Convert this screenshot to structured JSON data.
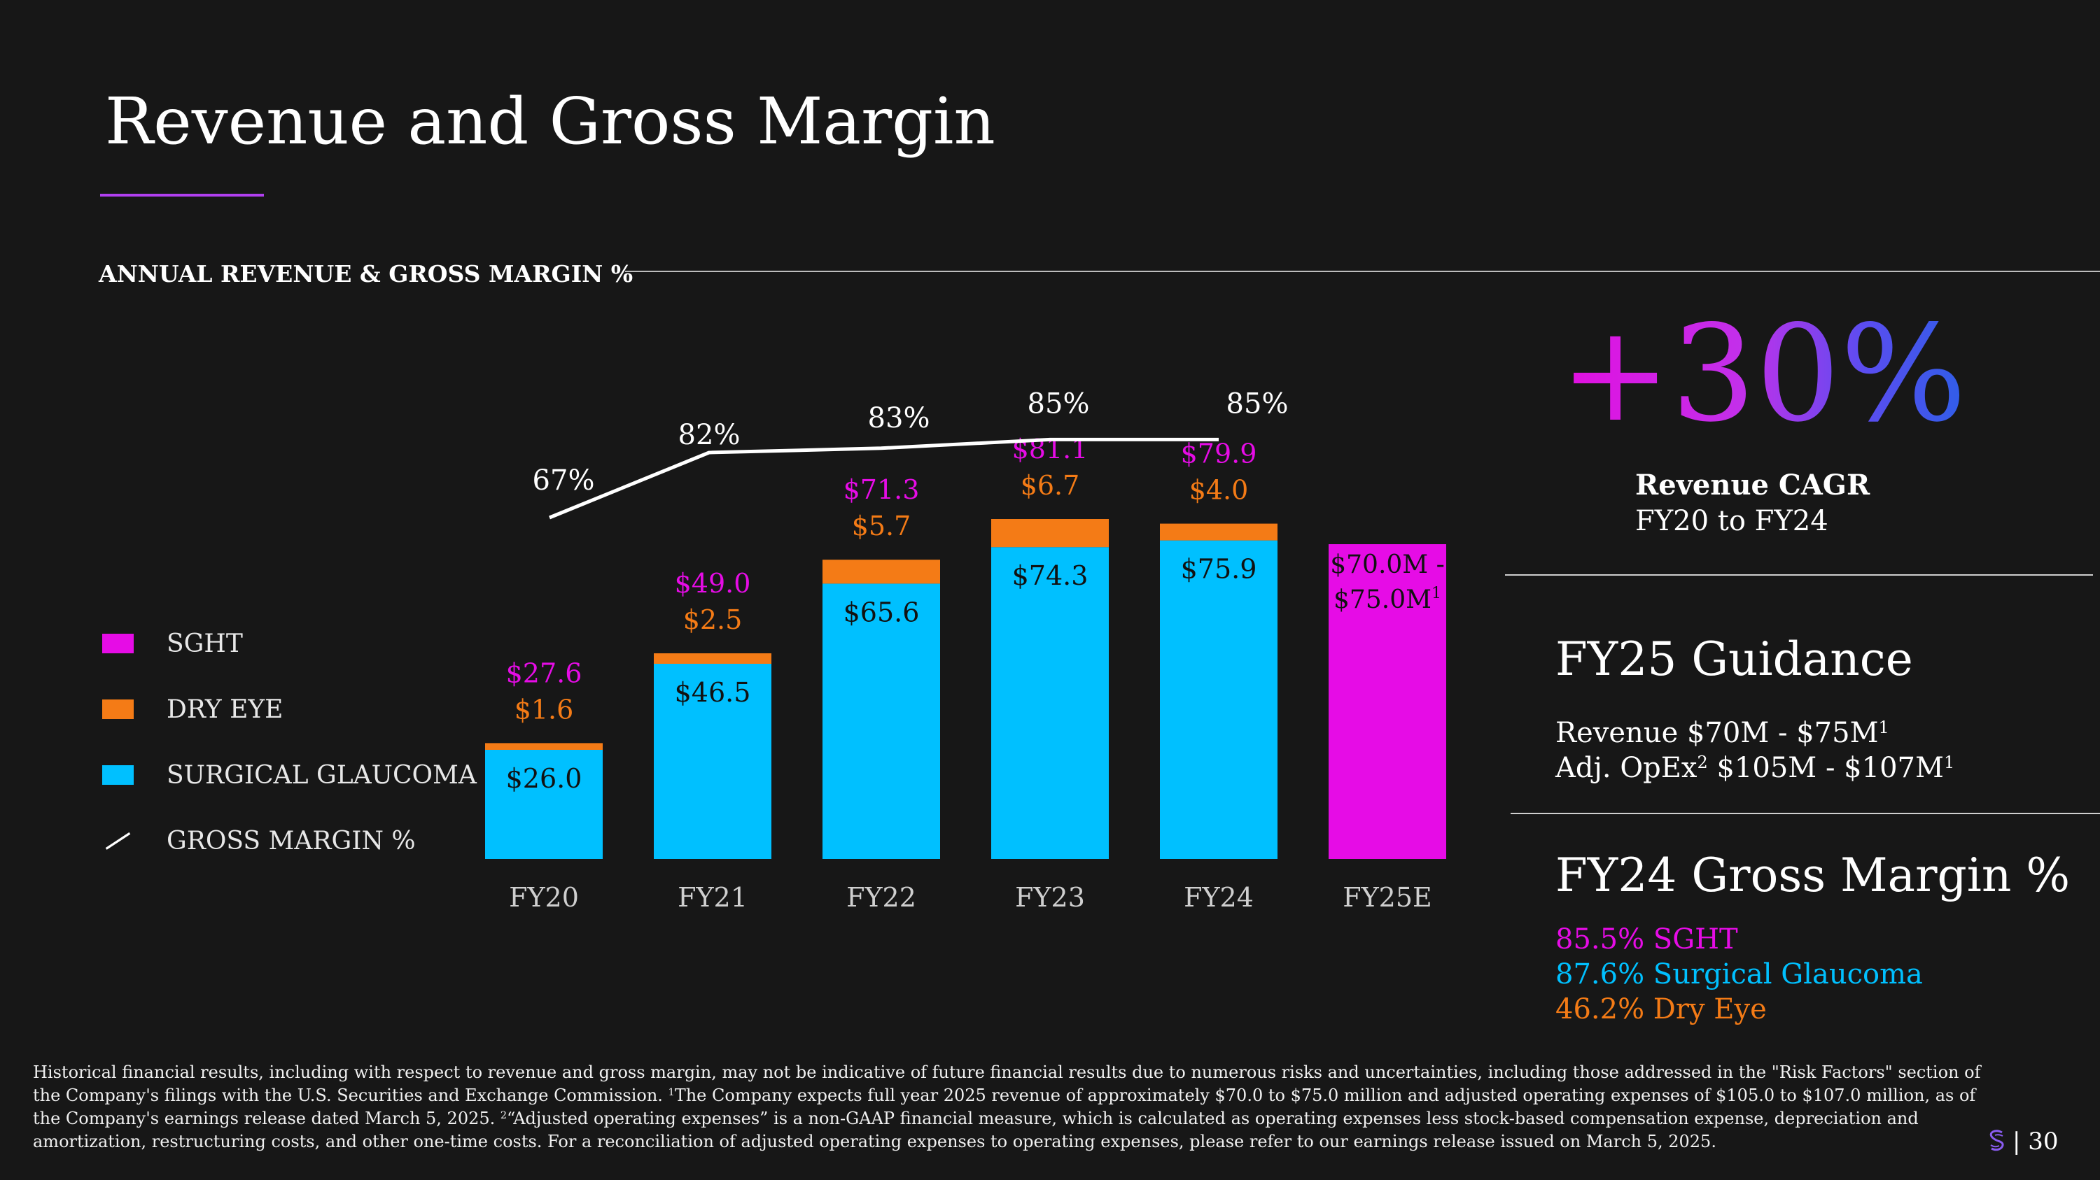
{
  "page_title": "Revenue and Gross Margin",
  "section_label": "ANNUAL REVENUE & GROSS MARGIN %",
  "colors": {
    "sght": "#e60ce6",
    "dry_eye": "#f47b16",
    "surgical_glaucoma": "#00c0ff",
    "gross_margin": "#ffffff",
    "accent": "#b13ff0"
  },
  "legend": [
    {
      "label": "SGHT",
      "color": "#e60ce6",
      "icon": "square"
    },
    {
      "label": "DRY EYE",
      "color": "#f47b16",
      "icon": "square"
    },
    {
      "label": "SURGICAL GLAUCOMA",
      "color": "#00c0ff",
      "icon": "square"
    },
    {
      "label": "GROSS MARGIN %",
      "color": "#ffffff",
      "icon": "line"
    }
  ],
  "chart_data": {
    "type": "bar",
    "title": "ANNUAL REVENUE & GROSS MARGIN %",
    "categories": [
      "FY20",
      "FY21",
      "FY22",
      "FY23",
      "FY24",
      "FY25E"
    ],
    "units": "$M",
    "series": [
      {
        "name": "SURGICAL GLAUCOMA",
        "values": [
          26.0,
          46.5,
          65.6,
          74.3,
          75.9,
          null
        ],
        "labels": [
          "$26.0",
          "$46.5",
          "$65.6",
          "$74.3",
          "$75.9",
          ""
        ]
      },
      {
        "name": "DRY EYE",
        "values": [
          1.6,
          2.5,
          5.7,
          6.7,
          4.0,
          null
        ],
        "labels": [
          "$1.6",
          "$2.5",
          "$5.7",
          "$6.7",
          "$4.0",
          ""
        ]
      },
      {
        "name": "SGHT",
        "values": [
          27.6,
          49.0,
          71.3,
          81.1,
          79.9,
          75.0
        ],
        "labels": [
          "$27.6",
          "$49.0",
          "$71.3",
          "$81.1",
          "$79.9",
          ""
        ]
      }
    ],
    "guidance_label_lines": [
      "$70.0M -",
      "$75.0M"
    ],
    "guidance_footnote_mark": "1",
    "gross_margin": {
      "name": "GROSS MARGIN %",
      "values": [
        67,
        82,
        83,
        85,
        85,
        null
      ],
      "labels": [
        "67%",
        "82%",
        "83%",
        "85%",
        "85%",
        ""
      ]
    },
    "ylim": [
      0,
      95
    ],
    "grid": false,
    "legend_position": "left"
  },
  "kpi": {
    "value": "+30%",
    "label": "Revenue CAGR",
    "sub": "FY20 to FY24"
  },
  "guidance": {
    "heading": "FY25 Guidance",
    "revenue_prefix": "Revenue $70M - $75M",
    "revenue_mark": "1",
    "opex_prefix": "Adj. OpEx",
    "opex_mark": "2",
    "opex_middle": " $105M - $107M",
    "opex_mark2": "1"
  },
  "gross_margin_summary": {
    "heading": "FY24 Gross Margin %",
    "lines": [
      {
        "text": "85.5% SGHT",
        "color": "#e60ce6"
      },
      {
        "text": "87.6% Surgical Glaucoma",
        "color": "#00c0ff"
      },
      {
        "text": "46.2% Dry Eye",
        "color": "#f47b16"
      }
    ]
  },
  "footnote": {
    "part1": "Historical financial results, including with respect to revenue and gross margin, may not be indicative of future financial results due to numerous risks and uncertainties, including those addressed in the \"Risk Factors\" section of the Company's filings with the U.S. Securities and Exchange Commission. ",
    "mark1": "1",
    "part2": "The Company expects full year 2025 revenue of approximately $70.0 to $75.0 million and adjusted operating expenses of $105.0 to $107.0 million, as of the Company's earnings release dated March 5, 2025. ",
    "mark2": "2",
    "part3": "“Adjusted operating expenses” is a non-GAAP financial measure, which is calculated as operating expenses less stock-based compensation expense, depreciation and amortization, restructuring costs, and other one-time costs. For a reconciliation of adjusted operating expenses to operating expenses, please refer to our earnings release issued on March 5, 2025."
  },
  "page_number": "| 30"
}
